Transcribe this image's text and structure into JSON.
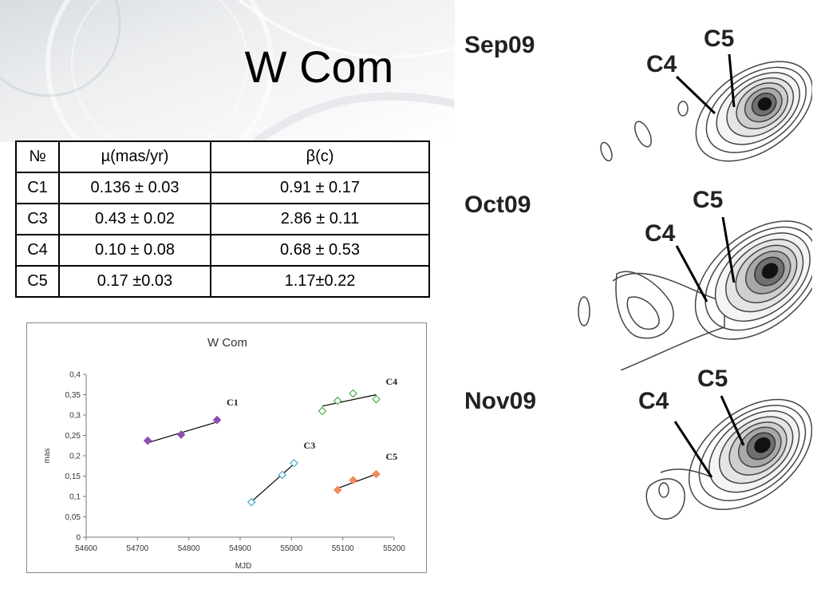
{
  "slide": {
    "title": "W Com"
  },
  "table": {
    "headers": [
      "№",
      "µ(mas/yr)",
      "β(c)"
    ],
    "rows": [
      [
        "C1",
        "0.136 ± 0.03",
        "0.91 ± 0.17"
      ],
      [
        "C3",
        "0.43 ± 0.02",
        "2.86 ± 0.11"
      ],
      [
        "C4",
        "0.10 ± 0.08",
        "0.68 ± 0.53"
      ],
      [
        "C5",
        "0.17 ±0.03",
        "1.17±0.22"
      ]
    ]
  },
  "chart_data": {
    "type": "scatter",
    "title": "W Com",
    "xlabel": "MJD",
    "ylabel": "mas",
    "xlim": [
      54600,
      55200
    ],
    "ylim": [
      0,
      0.4
    ],
    "xticks": [
      54600,
      54700,
      54800,
      54900,
      55000,
      55100,
      55200
    ],
    "xtick_labels": [
      "54600",
      "54700",
      "54800",
      "54900",
      "55000",
      "55100",
      "55200"
    ],
    "yticks": [
      0,
      0.05,
      0.1,
      0.15,
      0.2,
      0.25,
      0.3,
      0.35,
      0.4
    ],
    "ytick_labels": [
      "0",
      "0,05",
      "0,1",
      "0,15",
      "0,2",
      "0,25",
      "0,3",
      "0,35",
      "0,4"
    ],
    "grid": false,
    "series": [
      {
        "name": "C1",
        "color": "#8b4fb0",
        "filled": true,
        "points": [
          [
            54720,
            0.237
          ],
          [
            54785,
            0.252
          ],
          [
            54855,
            0.288
          ]
        ],
        "fit": [
          [
            54720,
            0.232
          ],
          [
            54855,
            0.283
          ]
        ]
      },
      {
        "name": "C3",
        "color": "#4aa9c9",
        "filled": false,
        "points": [
          [
            54922,
            0.086
          ],
          [
            54982,
            0.153
          ],
          [
            55005,
            0.182
          ]
        ],
        "fit": [
          [
            54920,
            0.085
          ],
          [
            55005,
            0.18
          ]
        ]
      },
      {
        "name": "C4",
        "color": "#4caf50",
        "filled": false,
        "points": [
          [
            55060,
            0.31
          ],
          [
            55090,
            0.335
          ],
          [
            55120,
            0.353
          ],
          [
            55165,
            0.339
          ]
        ],
        "fit": [
          [
            55060,
            0.322
          ],
          [
            55165,
            0.35
          ]
        ]
      },
      {
        "name": "C5",
        "color": "#f08a5d",
        "filled": true,
        "points": [
          [
            55090,
            0.116
          ],
          [
            55120,
            0.14
          ],
          [
            55165,
            0.155
          ]
        ],
        "fit": [
          [
            55090,
            0.12
          ],
          [
            55165,
            0.155
          ]
        ]
      }
    ]
  },
  "contour_panels": [
    {
      "epoch": "Sep09",
      "c4": "C4",
      "c5": "C5"
    },
    {
      "epoch": "Oct09",
      "c4": "C4",
      "c5": "C5"
    },
    {
      "epoch": "Nov09",
      "c4": "C4",
      "c5": "C5"
    }
  ],
  "colors": {
    "contour": "#444444",
    "core": "#000000"
  }
}
